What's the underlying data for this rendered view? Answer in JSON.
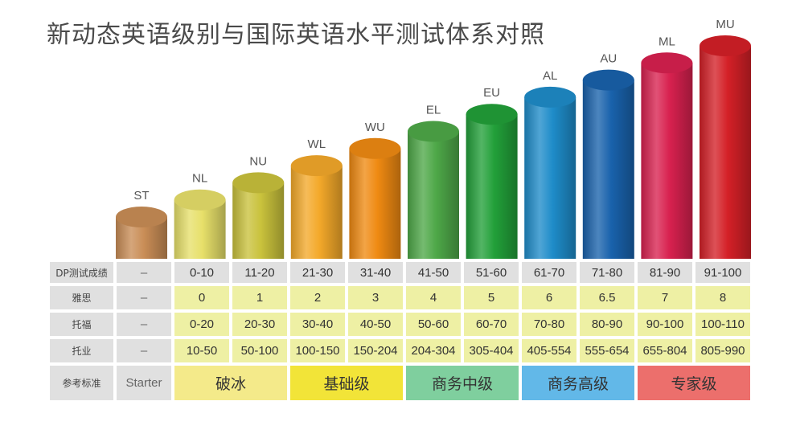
{
  "title": "新动态英语级别与国际英语水平测试体系对照",
  "colors": {
    "ST": "#c98d56",
    "NL": "#e7e06a",
    "NU": "#c9c23c",
    "WL": "#f4a92a",
    "WU": "#ef8a12",
    "EL": "#4ea848",
    "EU": "#22a039",
    "AL": "#1e8cc9",
    "AU": "#1962ac",
    "ML": "#d8214f",
    "MU": "#d42027"
  },
  "chart_data": {
    "type": "bar",
    "categories": [
      "ST",
      "NL",
      "NU",
      "WL",
      "WU",
      "EL",
      "EU",
      "AL",
      "AU",
      "ML",
      "MU"
    ],
    "values": [
      1,
      2,
      3,
      4,
      5,
      6,
      7,
      8,
      9,
      10,
      11
    ]
  },
  "table": {
    "rows": [
      {
        "header": "DP测试成绩",
        "cells": [
          "–",
          "0-10",
          "11-20",
          "21-30",
          "31-40",
          "41-50",
          "51-60",
          "61-70",
          "71-80",
          "81-90",
          "91-100"
        ]
      },
      {
        "header": "雅思",
        "cells": [
          "–",
          "0",
          "1",
          "2",
          "3",
          "4",
          "5",
          "6",
          "6.5",
          "7",
          "8"
        ]
      },
      {
        "header": "托福",
        "cells": [
          "–",
          "0-20",
          "20-30",
          "30-40",
          "40-50",
          "50-60",
          "60-70",
          "70-80",
          "80-90",
          "90-100",
          "100-110"
        ]
      },
      {
        "header": "托业",
        "cells": [
          "–",
          "10-50",
          "50-100",
          "100-150",
          "150-204",
          "204-304",
          "305-404",
          "405-554",
          "555-654",
          "655-804",
          "805-990"
        ]
      }
    ],
    "reference": {
      "header": "参考标准",
      "starter": "Starter",
      "bands": [
        {
          "label": "破冰",
          "color": "#f4ea8a"
        },
        {
          "label": "基础级",
          "color": "#f2e438"
        },
        {
          "label": "商务中级",
          "color": "#7fcf9e"
        },
        {
          "label": "商务高级",
          "color": "#62b8e8"
        },
        {
          "label": "专家级",
          "color": "#ec6f6c"
        }
      ]
    }
  }
}
